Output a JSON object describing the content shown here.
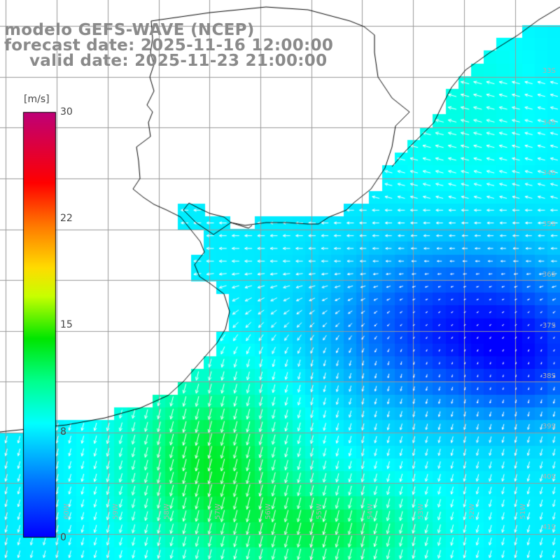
{
  "title": {
    "line1": "modelo GEFS-WAVE (NCEP)",
    "line2": "forecast date: 2025-11-16 12:00:00",
    "line3": "valid date: 2025-11-23 21:00:00"
  },
  "colorbar": {
    "unit": "[m/s]",
    "min": 0,
    "max": 30,
    "ticks": [
      "30",
      "22",
      "15",
      "8",
      "0"
    ],
    "tick_values": [
      30,
      22,
      15,
      8,
      0
    ],
    "colors": [
      "#0000ff",
      "#00c8ff",
      "#00ffff",
      "#00ff00",
      "#ffff00",
      "#ff8000",
      "#ff0000",
      "#c00080"
    ]
  },
  "lat_labels": [
    "33S",
    "34S",
    "34S",
    "35S",
    "36S",
    "37S",
    "38S",
    "39S",
    "40S",
    "41S"
  ],
  "lon_labels": [
    "60W",
    "59W",
    "58W",
    "57W",
    "56W",
    "55W",
    "54W",
    "53W",
    "52W",
    "51W"
  ],
  "map": {
    "land_color": "#ffffff",
    "grid_color": "#999999",
    "coast_color": "#000000",
    "arrow_color": "#ffffff",
    "description_field": "wind speed at 10 m with direction arrows"
  }
}
